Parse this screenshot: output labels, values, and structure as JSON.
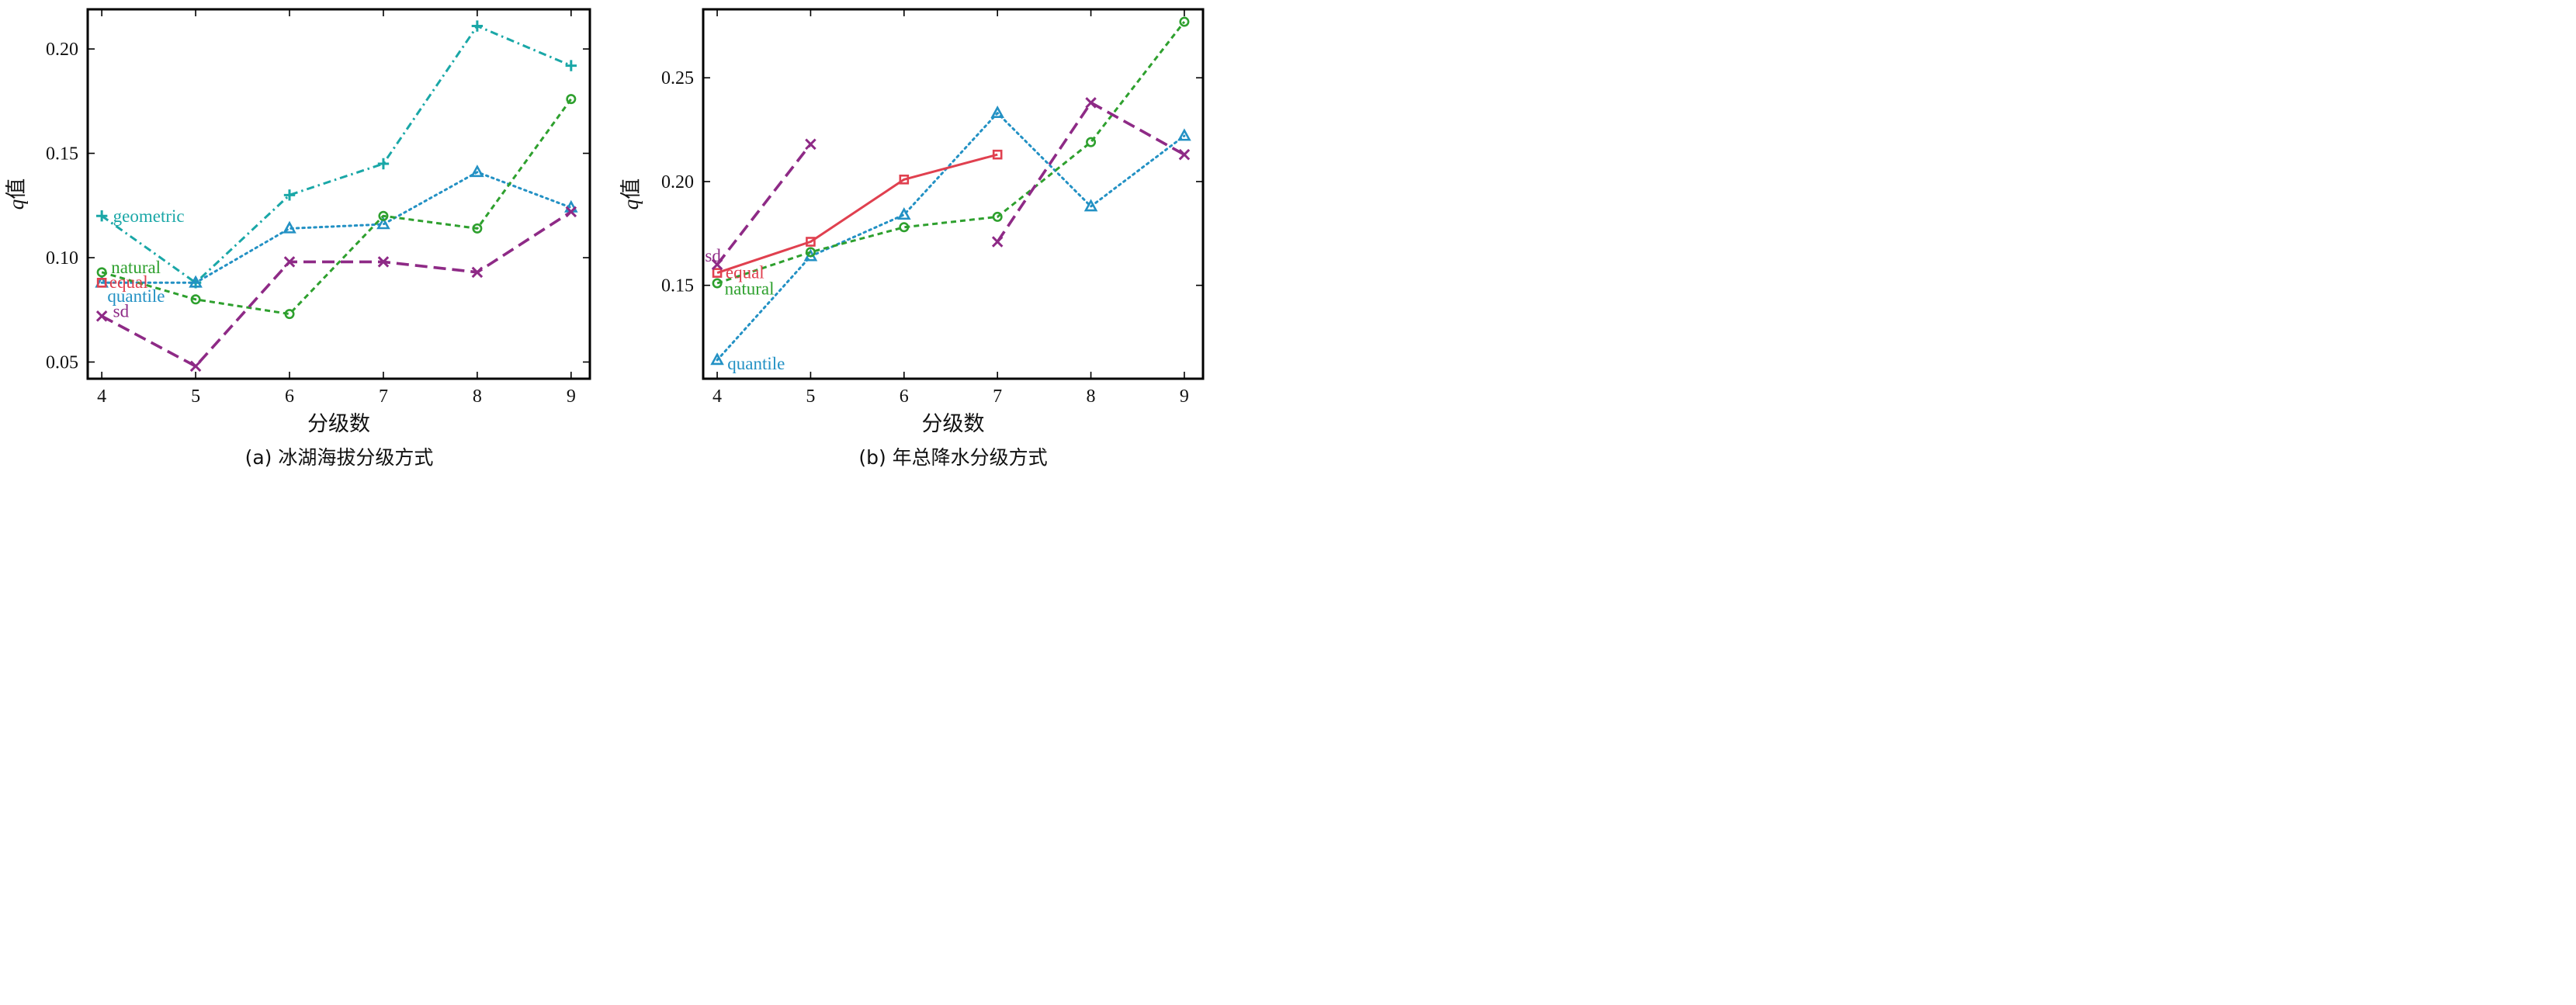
{
  "colors": {
    "geometric": "#1aa7a7",
    "natural": "#2ea02e",
    "equal": "#e0404f",
    "quantile": "#2391c4",
    "sd": "#8e2a86"
  },
  "chart_data": [
    {
      "id": "a",
      "type": "line",
      "caption": "(a) 冰湖海拔分级方式",
      "xlabel": "分级数",
      "ylabel_italic": "q",
      "ylabel_rest": "值",
      "xlim": [
        3.85,
        9.2
      ],
      "ylim": [
        0.042,
        0.219
      ],
      "xticks": [
        4,
        5,
        6,
        7,
        8,
        9
      ],
      "xtick_labels": [
        "4",
        "5",
        "6",
        "7",
        "8",
        "9"
      ],
      "yticks": [
        0.05,
        0.1,
        0.15,
        0.2
      ],
      "ytick_labels": [
        "0.05",
        "0.10",
        "0.15",
        "0.20"
      ],
      "series": [
        {
          "name": "geometric",
          "color_key": "geometric",
          "marker": "plus",
          "dash": "dashdot",
          "points": [
            [
              4,
              0.12
            ],
            [
              5,
              0.088
            ],
            [
              6,
              0.13
            ],
            [
              7,
              0.145
            ],
            [
              8,
              0.211
            ],
            [
              9,
              0.192
            ]
          ]
        },
        {
          "name": "quantile",
          "color_key": "quantile",
          "marker": "triangle",
          "dash": "dot",
          "points": [
            [
              4,
              0.088
            ],
            [
              5,
              0.088
            ],
            [
              6,
              0.114
            ],
            [
              7,
              0.116
            ],
            [
              8,
              0.141
            ],
            [
              9,
              0.124
            ]
          ]
        },
        {
          "name": "natural",
          "color_key": "natural",
          "marker": "circle",
          "dash": "short",
          "points": [
            [
              4,
              0.093
            ],
            [
              5,
              0.08
            ],
            [
              6,
              0.073
            ],
            [
              7,
              0.12
            ],
            [
              8,
              0.114
            ],
            [
              9,
              0.176
            ]
          ]
        },
        {
          "name": "equal",
          "color_key": "equal",
          "marker": "square",
          "dash": "solid",
          "points": [
            [
              4,
              0.088
            ]
          ]
        },
        {
          "name": "sd",
          "color_key": "sd",
          "marker": "x",
          "dash": "long",
          "points": [
            [
              4,
              0.072
            ],
            [
              5,
              0.048
            ],
            [
              6,
              0.098
            ],
            [
              7,
              0.098
            ],
            [
              8,
              0.093
            ],
            [
              9,
              0.122
            ]
          ]
        }
      ],
      "annotations": [
        {
          "text": "geometric",
          "color_key": "geometric",
          "at": [
            4.12,
            0.12
          ]
        },
        {
          "text": "natural",
          "color_key": "natural",
          "at": [
            4.1,
            0.0955
          ]
        },
        {
          "text": "equal",
          "color_key": "equal",
          "at": [
            4.08,
            0.0885
          ]
        },
        {
          "text": "quantile",
          "color_key": "quantile",
          "at": [
            4.06,
            0.0818
          ]
        },
        {
          "text": "sd",
          "color_key": "sd",
          "at": [
            4.12,
            0.0745
          ]
        }
      ]
    },
    {
      "id": "b",
      "type": "line",
      "caption": "(b) 年总降水分级方式",
      "xlabel": "分级数",
      "ylabel_italic": "q",
      "ylabel_rest": "值",
      "xlim": [
        3.85,
        9.2
      ],
      "ylim": [
        0.105,
        0.283
      ],
      "xticks": [
        4,
        5,
        6,
        7,
        8,
        9
      ],
      "xtick_labels": [
        "4",
        "5",
        "6",
        "7",
        "8",
        "9"
      ],
      "yticks": [
        0.15,
        0.2,
        0.25
      ],
      "ytick_labels": [
        "0.15",
        "0.20",
        "0.25"
      ],
      "series": [
        {
          "name": "quantile",
          "color_key": "quantile",
          "marker": "triangle",
          "dash": "dot",
          "points": [
            [
              4,
              0.114
            ],
            [
              5,
              0.164
            ],
            [
              6,
              0.184
            ],
            [
              7,
              0.233
            ],
            [
              8,
              0.188
            ],
            [
              9,
              0.222
            ]
          ]
        },
        {
          "name": "natural",
          "color_key": "natural",
          "marker": "circle",
          "dash": "short",
          "points": [
            [
              4,
              0.151
            ],
            [
              5,
              0.166
            ],
            [
              6,
              0.178
            ],
            [
              7,
              0.183
            ],
            [
              8,
              0.219
            ],
            [
              9,
              0.277
            ]
          ]
        },
        {
          "name": "equal",
          "color_key": "equal",
          "marker": "square",
          "dash": "solid",
          "points": [
            [
              4,
              0.156
            ],
            [
              5,
              0.171
            ],
            [
              6,
              0.201
            ],
            [
              7,
              0.213
            ]
          ]
        },
        {
          "name": "sd",
          "color_key": "sd",
          "marker": "x",
          "dash": "long",
          "segments": [
            [
              [
                4,
                0.16
              ],
              [
                5,
                0.218
              ]
            ],
            [
              [
                7,
                0.171
              ],
              [
                8,
                0.238
              ],
              [
                9,
                0.213
              ]
            ]
          ]
        }
      ],
      "annotations": [
        {
          "text": "sd",
          "color_key": "sd",
          "at": [
            3.87,
            0.1645
          ]
        },
        {
          "text": "equal",
          "color_key": "equal",
          "at": [
            4.09,
            0.1565
          ]
        },
        {
          "text": "natural",
          "color_key": "natural",
          "at": [
            4.08,
            0.1485
          ]
        },
        {
          "text": "quantile",
          "color_key": "quantile",
          "at": [
            4.11,
            0.1125
          ]
        }
      ]
    }
  ]
}
